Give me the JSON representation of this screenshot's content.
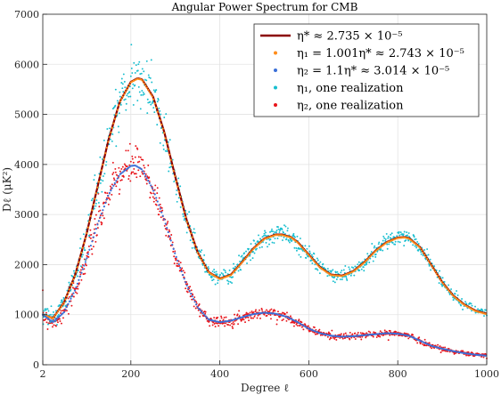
{
  "chart_data": {
    "type": "line",
    "title": "Angular Power Spectrum for CMB",
    "xlabel": "Degree ℓ",
    "ylabel": "Dℓ (μK²)",
    "xlim": [
      2,
      1000
    ],
    "ylim": [
      0,
      7000
    ],
    "xticks": [
      2,
      200,
      400,
      600,
      800,
      1000
    ],
    "xtick_labels": [
      "2",
      "200",
      "400",
      "600",
      "800",
      "1000"
    ],
    "yticks": [
      0,
      1000,
      2000,
      3000,
      4000,
      5000,
      6000,
      7000
    ],
    "ytick_labels": [
      "0",
      "1000",
      "2000",
      "3000",
      "4000",
      "5000",
      "6000",
      "7000"
    ],
    "grid": true,
    "legend_position": "top-right",
    "series": [
      {
        "name": "η* ≈ 2.735 × 10⁻⁵",
        "style": "line",
        "color": "#8b0000",
        "x": [
          2,
          25,
          50,
          75,
          100,
          125,
          150,
          175,
          200,
          215,
          225,
          250,
          275,
          300,
          325,
          350,
          375,
          400,
          425,
          450,
          475,
          500,
          525,
          540,
          560,
          575,
          600,
          625,
          650,
          675,
          700,
          725,
          750,
          775,
          800,
          815,
          825,
          850,
          875,
          900,
          925,
          950,
          975,
          1000
        ],
        "y": [
          1000,
          930,
          1250,
          1800,
          2600,
          3550,
          4500,
          5250,
          5650,
          5720,
          5700,
          5350,
          4650,
          3750,
          2900,
          2250,
          1850,
          1720,
          1800,
          2050,
          2320,
          2520,
          2600,
          2600,
          2550,
          2450,
          2200,
          1950,
          1800,
          1780,
          1870,
          2050,
          2280,
          2450,
          2540,
          2550,
          2530,
          2350,
          2000,
          1650,
          1380,
          1200,
          1080,
          1020
        ]
      },
      {
        "name": "η₁ = 1.001η* ≈ 2.743 × 10⁻⁵",
        "style": "markers",
        "color": "#ff8c1a",
        "x": [
          2,
          25,
          50,
          75,
          100,
          125,
          150,
          175,
          200,
          215,
          225,
          250,
          275,
          300,
          325,
          350,
          375,
          400,
          425,
          450,
          475,
          500,
          525,
          540,
          560,
          575,
          600,
          625,
          650,
          675,
          700,
          725,
          750,
          775,
          800,
          815,
          825,
          850,
          875,
          900,
          925,
          950,
          975,
          1000
        ],
        "y": [
          1000,
          925,
          1240,
          1790,
          2590,
          3540,
          4490,
          5240,
          5640,
          5710,
          5690,
          5330,
          4630,
          3730,
          2880,
          2240,
          1840,
          1710,
          1790,
          2040,
          2310,
          2510,
          2590,
          2590,
          2540,
          2440,
          2190,
          1940,
          1790,
          1770,
          1860,
          2040,
          2270,
          2440,
          2530,
          2540,
          2520,
          2340,
          1990,
          1640,
          1370,
          1190,
          1070,
          1010
        ]
      },
      {
        "name": "η₂ = 1.1η* ≈ 3.014 × 10⁻⁵",
        "style": "markers",
        "color": "#3a6fd8",
        "x": [
          2,
          25,
          50,
          75,
          100,
          125,
          150,
          175,
          200,
          210,
          225,
          250,
          275,
          300,
          325,
          350,
          375,
          400,
          425,
          450,
          475,
          500,
          525,
          550,
          575,
          600,
          625,
          650,
          675,
          700,
          725,
          750,
          775,
          800,
          825,
          850,
          875,
          900,
          925,
          950,
          975,
          1000
        ],
        "y": [
          1000,
          850,
          1050,
          1500,
          2100,
          2800,
          3400,
          3800,
          3970,
          3980,
          3900,
          3500,
          2900,
          2200,
          1600,
          1150,
          900,
          850,
          880,
          950,
          1010,
          1040,
          1020,
          960,
          850,
          720,
          630,
          580,
          560,
          570,
          590,
          610,
          630,
          620,
          580,
          480,
          380,
          320,
          270,
          230,
          200,
          180
        ]
      },
      {
        "name": "η₁, one realization",
        "style": "scatter",
        "color": "#17becf",
        "x": [
          2,
          25,
          50,
          75,
          100,
          125,
          150,
          175,
          200,
          215,
          225,
          250,
          275,
          300,
          325,
          350,
          375,
          400,
          425,
          450,
          475,
          500,
          525,
          540,
          560,
          575,
          600,
          625,
          650,
          675,
          700,
          725,
          750,
          775,
          800,
          815,
          825,
          850,
          875,
          900,
          925,
          950,
          975,
          1000
        ],
        "y": [
          1000,
          930,
          1250,
          1800,
          2600,
          3550,
          4500,
          5250,
          5650,
          5720,
          5700,
          5350,
          4650,
          3750,
          2900,
          2250,
          1850,
          1720,
          1800,
          2050,
          2320,
          2520,
          2600,
          2600,
          2550,
          2450,
          2200,
          1950,
          1800,
          1780,
          1870,
          2050,
          2280,
          2450,
          2540,
          2550,
          2530,
          2350,
          2000,
          1650,
          1380,
          1200,
          1080,
          1020
        ]
      },
      {
        "name": "η₂, one realization",
        "style": "scatter",
        "color": "#e8141a",
        "x": [
          2,
          25,
          50,
          75,
          100,
          125,
          150,
          175,
          200,
          210,
          225,
          250,
          275,
          300,
          325,
          350,
          375,
          400,
          425,
          450,
          475,
          500,
          525,
          550,
          575,
          600,
          625,
          650,
          675,
          700,
          725,
          750,
          775,
          800,
          825,
          850,
          875,
          900,
          925,
          950,
          975,
          1000
        ],
        "y": [
          1000,
          850,
          1050,
          1500,
          2100,
          2800,
          3400,
          3800,
          3970,
          3980,
          3900,
          3500,
          2900,
          2200,
          1600,
          1150,
          900,
          850,
          880,
          950,
          1010,
          1040,
          1020,
          960,
          850,
          720,
          630,
          580,
          560,
          570,
          590,
          610,
          630,
          620,
          580,
          480,
          380,
          320,
          270,
          230,
          200,
          180
        ]
      }
    ]
  }
}
